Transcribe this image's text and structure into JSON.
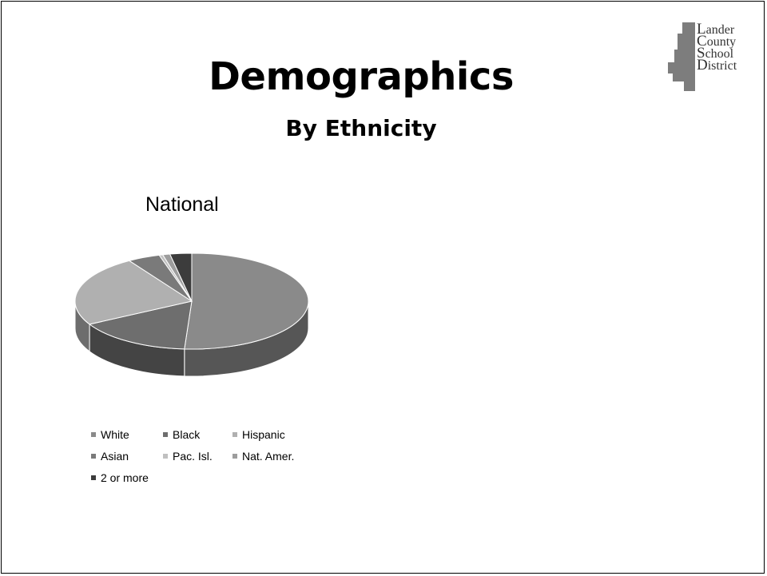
{
  "slide": {
    "title": "Demographics",
    "subtitle": "By Ethnicity"
  },
  "logo": {
    "lines": [
      {
        "cap": "L",
        "rest": "ander"
      },
      {
        "cap": "C",
        "rest": "ounty"
      },
      {
        "cap": "S",
        "rest": "chool"
      },
      {
        "cap": "D",
        "rest": "istrict"
      }
    ]
  },
  "chart_data": {
    "type": "pie",
    "title": "National",
    "categories": [
      "White",
      "Black",
      "Hispanic",
      "Asian",
      "Pac. Isl.",
      "Nat. Amer.",
      "2 or more"
    ],
    "values": [
      51,
      16,
      24,
      4.5,
      0.5,
      1,
      3
    ],
    "colors": [
      "#8a8a8a",
      "#6e6e6e",
      "#b0b0b0",
      "#7a7a7a",
      "#c0c0c0",
      "#9d9d9d",
      "#3c3c3c"
    ],
    "legend_position": "bottom",
    "three_d": true
  }
}
